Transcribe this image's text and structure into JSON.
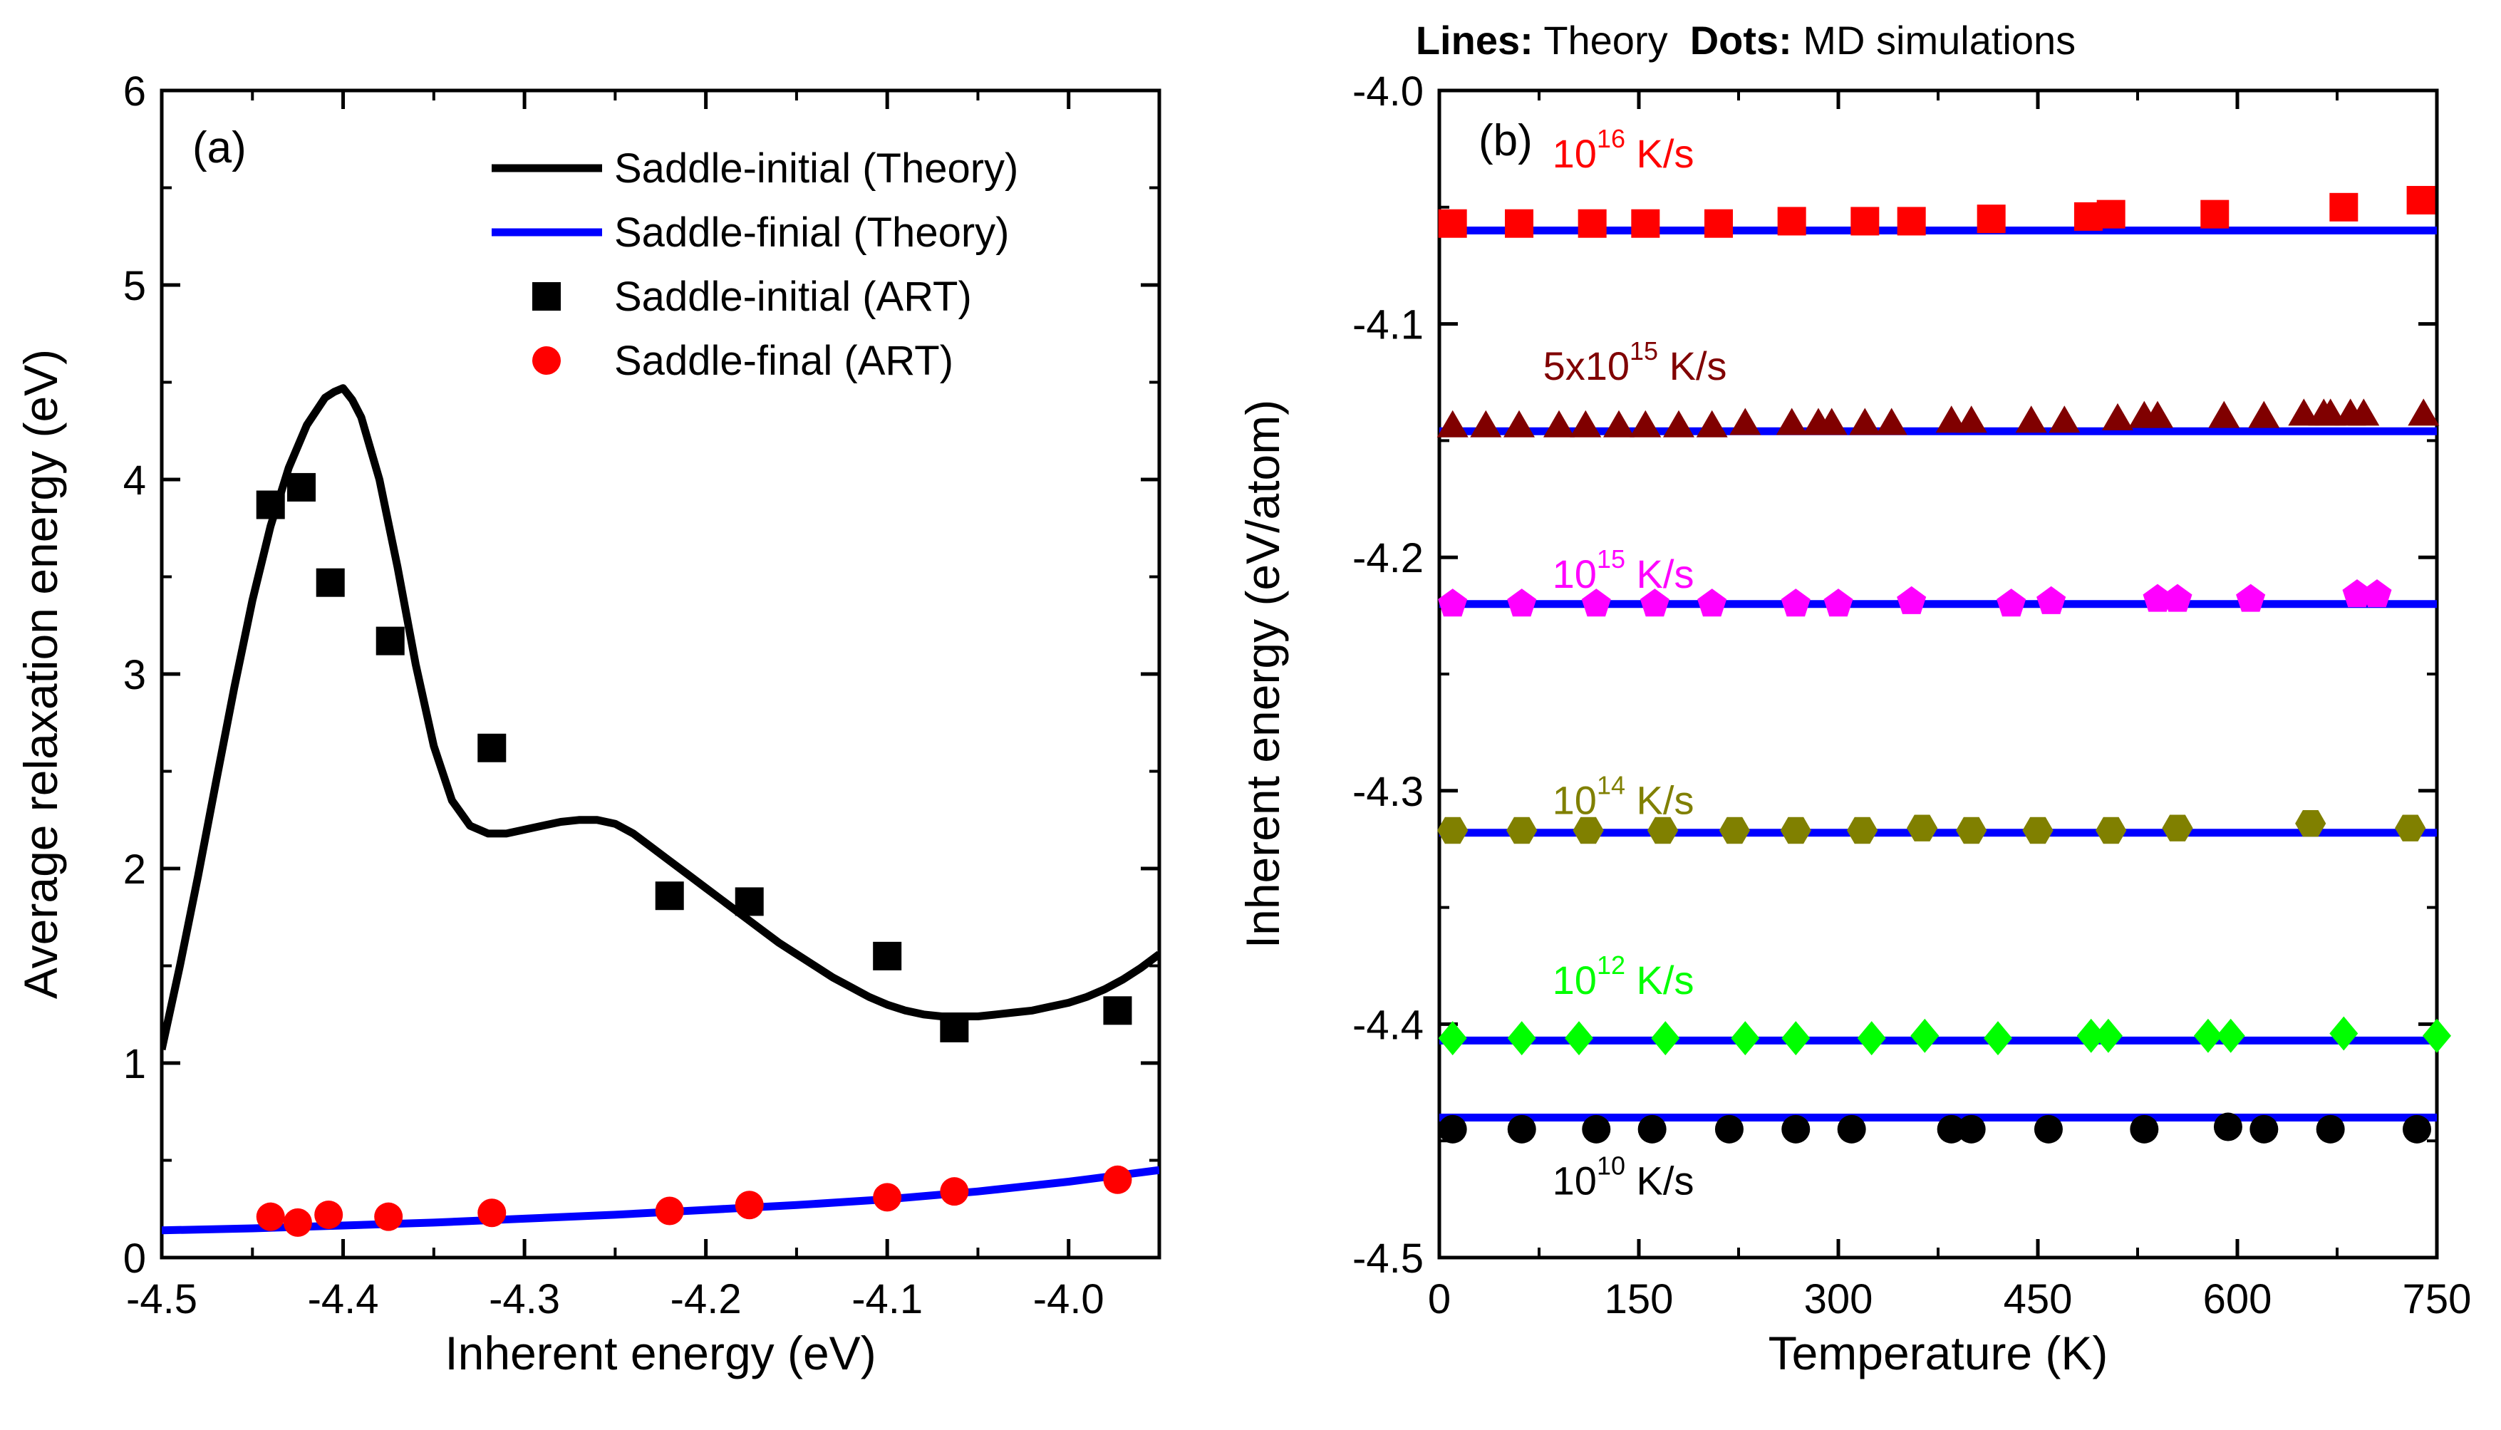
{
  "figure": {
    "header_note": {
      "bold_lines": "Lines:",
      "lines_text": " Theory  ",
      "bold_dots": "Dots:",
      "dots_text": " MD simulations"
    }
  },
  "chart_data": [
    {
      "panel": "(a)",
      "type": "line",
      "xlabel": "Inherent energy (eV)",
      "ylabel": "Average relaxation energy (eV)",
      "xlim": [
        -4.5,
        -3.95
      ],
      "ylim": [
        0,
        6
      ],
      "xticks": [
        -4.5,
        -4.4,
        -4.3,
        -4.2,
        -4.1,
        -4.0
      ],
      "xtick_labels": [
        "-4.5",
        "-4.4",
        "-4.3",
        "-4.2",
        "-4.1",
        "-4.0"
      ],
      "yticks": [
        0,
        1,
        2,
        3,
        4,
        5,
        6
      ],
      "ytick_labels": [
        "0",
        "1",
        "2",
        "3",
        "4",
        "5",
        "6"
      ],
      "legend": [
        {
          "label": "Saddle-initial (Theory)",
          "kind": "line",
          "color": "#000000"
        },
        {
          "label": "Saddle-finial (Theory)",
          "kind": "line",
          "color": "#0000ff"
        },
        {
          "label": "Saddle-initial (ART)",
          "kind": "square",
          "color": "#000000"
        },
        {
          "label": "Saddle-final (ART)",
          "kind": "circle",
          "color": "#ff0000"
        }
      ],
      "series": [
        {
          "name": "Saddle-initial (Theory)",
          "style": "line",
          "color": "#000000",
          "x": [
            -4.5,
            -4.49,
            -4.48,
            -4.47,
            -4.46,
            -4.45,
            -4.44,
            -4.43,
            -4.42,
            -4.41,
            -4.405,
            -4.4,
            -4.395,
            -4.39,
            -4.38,
            -4.37,
            -4.36,
            -4.35,
            -4.34,
            -4.33,
            -4.32,
            -4.31,
            -4.3,
            -4.29,
            -4.28,
            -4.27,
            -4.26,
            -4.25,
            -4.24,
            -4.23,
            -4.22,
            -4.21,
            -4.2,
            -4.19,
            -4.18,
            -4.17,
            -4.16,
            -4.15,
            -4.14,
            -4.13,
            -4.12,
            -4.11,
            -4.1,
            -4.09,
            -4.08,
            -4.07,
            -4.06,
            -4.05,
            -4.04,
            -4.03,
            -4.02,
            -4.01,
            -4.0,
            -3.99,
            -3.98,
            -3.97,
            -3.96,
            -3.95
          ],
          "y": [
            1.07,
            1.5,
            1.96,
            2.45,
            2.93,
            3.38,
            3.76,
            4.06,
            4.28,
            4.42,
            4.45,
            4.47,
            4.41,
            4.32,
            4.0,
            3.55,
            3.05,
            2.63,
            2.35,
            2.22,
            2.18,
            2.18,
            2.2,
            2.22,
            2.24,
            2.25,
            2.25,
            2.23,
            2.18,
            2.11,
            2.04,
            1.97,
            1.9,
            1.83,
            1.76,
            1.69,
            1.62,
            1.56,
            1.5,
            1.44,
            1.39,
            1.34,
            1.3,
            1.27,
            1.25,
            1.24,
            1.24,
            1.24,
            1.25,
            1.26,
            1.27,
            1.29,
            1.31,
            1.34,
            1.38,
            1.43,
            1.49,
            1.56
          ]
        },
        {
          "name": "Saddle-finial (Theory)",
          "style": "line",
          "color": "#0000ff",
          "x": [
            -4.5,
            -4.45,
            -4.4,
            -4.35,
            -4.3,
            -4.25,
            -4.2,
            -4.15,
            -4.1,
            -4.05,
            -4.0,
            -3.95
          ],
          "y": [
            0.14,
            0.15,
            0.165,
            0.18,
            0.2,
            0.22,
            0.245,
            0.27,
            0.3,
            0.34,
            0.39,
            0.45
          ]
        },
        {
          "name": "Saddle-initial (ART)",
          "style": "square",
          "color": "#000000",
          "x": [
            -4.44,
            -4.423,
            -4.407,
            -4.374,
            -4.318,
            -4.22,
            -4.176,
            -4.1,
            -4.063,
            -3.973
          ],
          "y": [
            3.87,
            3.96,
            3.47,
            3.17,
            2.62,
            1.86,
            1.83,
            1.55,
            1.18,
            1.27
          ]
        },
        {
          "name": "Saddle-final (ART)",
          "style": "circle",
          "color": "#ff0000",
          "x": [
            -4.44,
            -4.425,
            -4.408,
            -4.375,
            -4.318,
            -4.22,
            -4.176,
            -4.1,
            -4.063,
            -3.973
          ],
          "y": [
            0.21,
            0.18,
            0.22,
            0.21,
            0.23,
            0.24,
            0.27,
            0.31,
            0.34,
            0.4
          ]
        }
      ]
    },
    {
      "panel": "(b)",
      "type": "scatter",
      "xlabel": "Temperature (K)",
      "ylabel": "Inherent energy (eV/atom)",
      "xlim": [
        0,
        750
      ],
      "ylim": [
        -4.5,
        -4.0
      ],
      "xticks": [
        0,
        150,
        300,
        450,
        600,
        750
      ],
      "xtick_labels": [
        "0",
        "150",
        "300",
        "450",
        "600",
        "750"
      ],
      "yticks": [
        -4.5,
        -4.4,
        -4.3,
        -4.2,
        -4.1,
        -4.0
      ],
      "ytick_labels": [
        "-4.5",
        "-4.4",
        "-4.3",
        "-4.2",
        "-4.1",
        "-4.0"
      ],
      "theory_line_color": "#0000ff",
      "series": [
        {
          "label_base": "10",
          "label_exp": "16",
          "label_unit": " K/s",
          "label_at": [
            85,
            -4.033
          ],
          "color": "#ff0000",
          "marker": "square",
          "theory": -4.06,
          "x": [
            10,
            60,
            115,
            155,
            210,
            265,
            320,
            355,
            415,
            488,
            505,
            583,
            680,
            738
          ],
          "y": [
            -4.057,
            -4.057,
            -4.057,
            -4.057,
            -4.057,
            -4.056,
            -4.056,
            -4.056,
            -4.055,
            -4.054,
            -4.053,
            -4.053,
            -4.05,
            -4.047
          ]
        },
        {
          "label_base": "5x10",
          "label_exp": "15",
          "label_unit": " K/s",
          "label_at": [
            78,
            -4.124
          ],
          "color": "#800000",
          "marker": "triangle",
          "theory": -4.146,
          "x": [
            10,
            35,
            60,
            90,
            110,
            135,
            155,
            180,
            205,
            230,
            265,
            285,
            295,
            320,
            340,
            385,
            400,
            445,
            470,
            510,
            530,
            540,
            590,
            620,
            650,
            665,
            670,
            685,
            695,
            740
          ],
          "y": [
            -4.144,
            -4.144,
            -4.144,
            -4.144,
            -4.144,
            -4.144,
            -4.144,
            -4.144,
            -4.144,
            -4.143,
            -4.143,
            -4.143,
            -4.143,
            -4.143,
            -4.143,
            -4.142,
            -4.142,
            -4.142,
            -4.142,
            -4.141,
            -4.14,
            -4.14,
            -4.14,
            -4.14,
            -4.139,
            -4.139,
            -4.139,
            -4.139,
            -4.139,
            -4.139
          ]
        },
        {
          "label_base": "10",
          "label_exp": "15",
          "label_unit": " K/s",
          "label_at": [
            85,
            -4.213
          ],
          "color": "#ff00ff",
          "marker": "pentagon",
          "theory": -4.22,
          "x": [
            10,
            62,
            118,
            162,
            205,
            268,
            300,
            355,
            430,
            460,
            540,
            555,
            610,
            690,
            705
          ],
          "y": [
            -4.22,
            -4.22,
            -4.22,
            -4.22,
            -4.22,
            -4.22,
            -4.22,
            -4.219,
            -4.22,
            -4.219,
            -4.218,
            -4.218,
            -4.218,
            -4.216,
            -4.216
          ]
        },
        {
          "label_base": "10",
          "label_exp": "14",
          "label_unit": " K/s",
          "label_at": [
            85,
            -4.31
          ],
          "color": "#808000",
          "marker": "hexagon",
          "theory": -4.318,
          "x": [
            10,
            62,
            112,
            168,
            222,
            268,
            318,
            363,
            400,
            450,
            505,
            555,
            655,
            730
          ],
          "y": [
            -4.317,
            -4.317,
            -4.317,
            -4.317,
            -4.317,
            -4.317,
            -4.317,
            -4.316,
            -4.317,
            -4.317,
            -4.317,
            -4.316,
            -4.314,
            -4.316
          ]
        },
        {
          "label_base": "10",
          "label_exp": "12",
          "label_unit": " K/s",
          "label_at": [
            85,
            -4.387
          ],
          "color": "#00ff00",
          "marker": "diamond",
          "theory": -4.407,
          "x": [
            10,
            62,
            105,
            170,
            230,
            268,
            325,
            365,
            420,
            490,
            503,
            578,
            595,
            680,
            750
          ],
          "y": [
            -4.406,
            -4.406,
            -4.406,
            -4.406,
            -4.406,
            -4.406,
            -4.406,
            -4.405,
            -4.406,
            -4.405,
            -4.405,
            -4.405,
            -4.405,
            -4.404,
            -4.405
          ]
        },
        {
          "label_base": "10",
          "label_exp": "10",
          "label_unit": " K/s",
          "label_at": [
            85,
            -4.473
          ],
          "color": "#000000",
          "marker": "circle",
          "theory": -4.44,
          "x": [
            10,
            62,
            118,
            160,
            218,
            268,
            310,
            385,
            400,
            458,
            530,
            593,
            620,
            670,
            735
          ],
          "y": [
            -4.445,
            -4.445,
            -4.445,
            -4.445,
            -4.445,
            -4.445,
            -4.445,
            -4.445,
            -4.445,
            -4.445,
            -4.445,
            -4.444,
            -4.445,
            -4.445,
            -4.445
          ]
        }
      ]
    }
  ]
}
